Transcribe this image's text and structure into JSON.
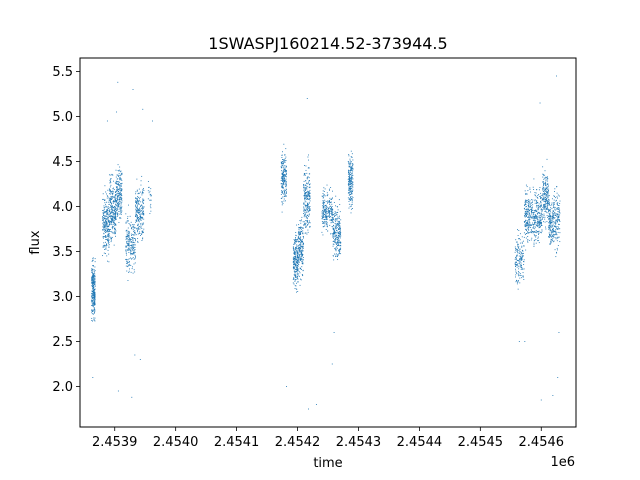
{
  "chart_data": {
    "type": "scatter",
    "title": "1SWASPJ160214.52-373944.5",
    "xlabel": "time",
    "ylabel": "flux",
    "x_offset_label": "1e6",
    "xlim": [
      2453843,
      2454657
    ],
    "ylim": [
      1.55,
      5.65
    ],
    "xticks": [
      2453900,
      2454000,
      2454100,
      2454200,
      2454300,
      2454400,
      2454500,
      2454600
    ],
    "xtick_labels": [
      "2.4539",
      "2.4540",
      "2.4541",
      "2.4542",
      "2.4543",
      "2.4544",
      "2.4545",
      "2.4546"
    ],
    "yticks": [
      2.0,
      2.5,
      3.0,
      3.5,
      4.0,
      4.5,
      5.0,
      5.5
    ],
    "ytick_labels": [
      "2.0",
      "2.5",
      "3.0",
      "3.5",
      "4.0",
      "4.5",
      "5.0",
      "5.5"
    ],
    "grid": false,
    "marker_color": "#1f77b4",
    "clusters": [
      {
        "x": [
          2453862,
          2453868
        ],
        "y": [
          2.75,
          3.4
        ],
        "n": 260
      },
      {
        "x": [
          2453880,
          2453891
        ],
        "y": [
          3.45,
          4.15
        ],
        "n": 240
      },
      {
        "x": [
          2453891,
          2453902
        ],
        "y": [
          3.6,
          4.3
        ],
        "n": 260
      },
      {
        "x": [
          2453902,
          2453912
        ],
        "y": [
          3.85,
          4.45
        ],
        "n": 200
      },
      {
        "x": [
          2453918,
          2453934
        ],
        "y": [
          3.25,
          3.9
        ],
        "n": 220
      },
      {
        "x": [
          2453934,
          2453948
        ],
        "y": [
          3.65,
          4.25
        ],
        "n": 220
      },
      {
        "x": [
          2453955,
          2453960
        ],
        "y": [
          3.9,
          4.3
        ],
        "n": 20
      },
      {
        "x": [
          2454173,
          2454182
        ],
        "y": [
          4.0,
          4.6
        ],
        "n": 200
      },
      {
        "x": [
          2454193,
          2454201
        ],
        "y": [
          3.1,
          3.7
        ],
        "n": 220
      },
      {
        "x": [
          2454201,
          2454210
        ],
        "y": [
          3.2,
          3.9
        ],
        "n": 200
      },
      {
        "x": [
          2454210,
          2454221
        ],
        "y": [
          3.7,
          4.45
        ],
        "n": 230
      },
      {
        "x": [
          2454240,
          2454258
        ],
        "y": [
          3.7,
          4.2
        ],
        "n": 230
      },
      {
        "x": [
          2454258,
          2454271
        ],
        "y": [
          3.4,
          4.0
        ],
        "n": 240
      },
      {
        "x": [
          2454283,
          2454291
        ],
        "y": [
          4.0,
          4.6
        ],
        "n": 200
      },
      {
        "x": [
          2454557,
          2454572
        ],
        "y": [
          3.1,
          3.7
        ],
        "n": 160
      },
      {
        "x": [
          2454572,
          2454587
        ],
        "y": [
          3.6,
          4.2
        ],
        "n": 220
      },
      {
        "x": [
          2454587,
          2454602
        ],
        "y": [
          3.6,
          4.2
        ],
        "n": 220
      },
      {
        "x": [
          2454602,
          2454612
        ],
        "y": [
          3.8,
          4.4
        ],
        "n": 180
      },
      {
        "x": [
          2454612,
          2454620
        ],
        "y": [
          3.55,
          4.1
        ],
        "n": 150
      },
      {
        "x": [
          2454620,
          2454631
        ],
        "y": [
          3.5,
          4.2
        ],
        "n": 150
      }
    ],
    "outliers": [
      {
        "x": 2453864,
        "y": 2.1
      },
      {
        "x": 2453888,
        "y": 4.95
      },
      {
        "x": 2453903,
        "y": 5.05
      },
      {
        "x": 2453905,
        "y": 5.38
      },
      {
        "x": 2453906,
        "y": 1.95
      },
      {
        "x": 2453928,
        "y": 1.88
      },
      {
        "x": 2453930,
        "y": 5.3
      },
      {
        "x": 2453933,
        "y": 2.35
      },
      {
        "x": 2453942,
        "y": 2.3
      },
      {
        "x": 2453946,
        "y": 5.08
      },
      {
        "x": 2453962,
        "y": 4.95
      },
      {
        "x": 2454182,
        "y": 2.0
      },
      {
        "x": 2454216,
        "y": 5.2
      },
      {
        "x": 2454218,
        "y": 1.75
      },
      {
        "x": 2454231,
        "y": 1.8
      },
      {
        "x": 2454257,
        "y": 2.25
      },
      {
        "x": 2454260,
        "y": 2.6
      },
      {
        "x": 2454287,
        "y": 4.4
      },
      {
        "x": 2454564,
        "y": 2.5
      },
      {
        "x": 2454573,
        "y": 2.5
      },
      {
        "x": 2454598,
        "y": 5.15
      },
      {
        "x": 2454600,
        "y": 1.85
      },
      {
        "x": 2454619,
        "y": 1.9
      },
      {
        "x": 2454625,
        "y": 5.45
      },
      {
        "x": 2454627,
        "y": 2.1
      },
      {
        "x": 2454629,
        "y": 2.6
      }
    ]
  }
}
